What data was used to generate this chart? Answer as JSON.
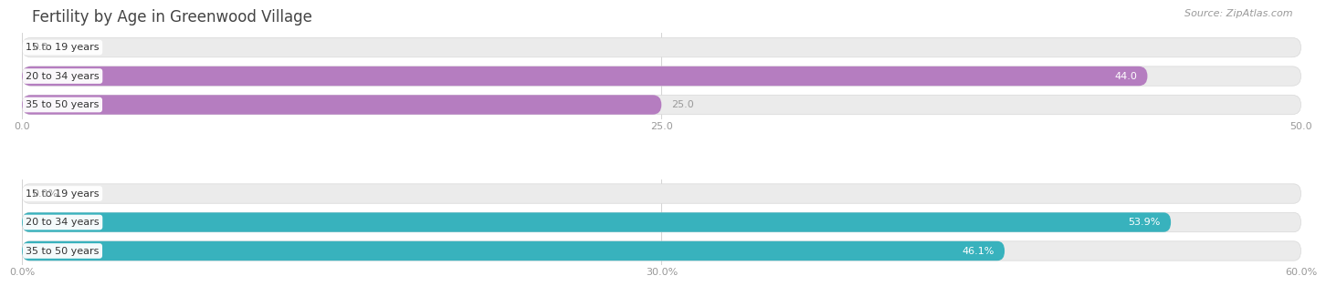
{
  "title": "Fertility by Age in Greenwood Village",
  "source": "Source: ZipAtlas.com",
  "top_chart": {
    "categories": [
      "15 to 19 years",
      "20 to 34 years",
      "35 to 50 years"
    ],
    "values": [
      0.0,
      44.0,
      25.0
    ],
    "xmax": 50,
    "xticks": [
      0.0,
      25.0,
      50.0
    ],
    "xtick_labels": [
      "0.0",
      "25.0",
      "50.0"
    ],
    "bar_color_main": "#b57dc0",
    "bar_color_light": "#cba8d8",
    "bg_color": "#ebebeb"
  },
  "bottom_chart": {
    "categories": [
      "15 to 19 years",
      "20 to 34 years",
      "35 to 50 years"
    ],
    "values": [
      0.0,
      53.9,
      46.1
    ],
    "xmax": 60,
    "xticks": [
      0.0,
      30.0,
      60.0
    ],
    "xtick_labels": [
      "0.0%",
      "30.0%",
      "60.0%"
    ],
    "bar_color_main": "#38b2bd",
    "bar_color_light": "#7acfda",
    "bg_color": "#ebebeb"
  },
  "title_fontsize": 12,
  "label_fontsize": 8,
  "value_fontsize": 8,
  "tick_fontsize": 8,
  "source_fontsize": 8,
  "bar_height": 0.68,
  "fig_bg": "#ffffff",
  "text_color": "#444444",
  "tick_color": "#999999",
  "value_color_inside": "#ffffff",
  "value_color_outside": "#999999",
  "grid_color": "#cccccc"
}
